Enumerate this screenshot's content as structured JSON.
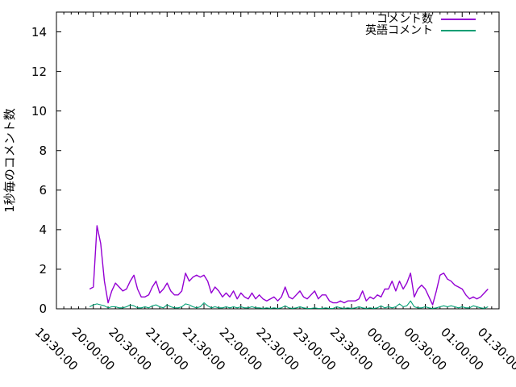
{
  "figure": {
    "background_color": "#ffffff",
    "axis_color": "#000000",
    "text_color": "#000000"
  },
  "chart_data": {
    "type": "line",
    "title": "",
    "xlabel": "",
    "ylabel": "1秒毎のコメント数",
    "ylim": [
      0,
      15
    ],
    "y_ticks": [
      0,
      2,
      4,
      6,
      8,
      10,
      12,
      14
    ],
    "x_ticks": [
      "19:30:00",
      "20:00:00",
      "20:30:00",
      "21:00:00",
      "21:30:00",
      "22:00:00",
      "22:30:00",
      "23:00:00",
      "23:30:00",
      "00:00:00",
      "00:30:00",
      "01:00:00",
      "01:30:00"
    ],
    "x_minor_tick_minutes": 6,
    "grid": false,
    "legend_position": "top-right-inside",
    "x": [
      "19:57",
      "20:00",
      "20:03",
      "20:06",
      "20:09",
      "20:12",
      "20:15",
      "20:18",
      "20:21",
      "20:24",
      "20:27",
      "20:30",
      "20:33",
      "20:36",
      "20:39",
      "20:42",
      "20:45",
      "20:48",
      "20:51",
      "20:54",
      "20:57",
      "21:00",
      "21:03",
      "21:06",
      "21:09",
      "21:12",
      "21:15",
      "21:18",
      "21:21",
      "21:24",
      "21:27",
      "21:30",
      "21:33",
      "21:36",
      "21:39",
      "21:42",
      "21:45",
      "21:48",
      "21:51",
      "21:54",
      "21:57",
      "22:00",
      "22:03",
      "22:06",
      "22:09",
      "22:12",
      "22:15",
      "22:18",
      "22:21",
      "22:24",
      "22:27",
      "22:30",
      "22:33",
      "22:36",
      "22:39",
      "22:42",
      "22:45",
      "22:48",
      "22:51",
      "22:54",
      "22:57",
      "23:00",
      "23:03",
      "23:06",
      "23:09",
      "23:12",
      "23:15",
      "23:18",
      "23:21",
      "23:24",
      "23:27",
      "23:30",
      "23:33",
      "23:36",
      "23:39",
      "23:42",
      "23:45",
      "23:48",
      "23:51",
      "23:54",
      "23:57",
      "00:00",
      "00:03",
      "00:06",
      "00:09",
      "00:12",
      "00:15",
      "00:18",
      "00:21",
      "00:24",
      "00:27",
      "00:30",
      "00:33",
      "00:36",
      "00:39",
      "00:42",
      "00:45",
      "00:48",
      "00:51",
      "00:54",
      "00:57",
      "01:00",
      "01:03",
      "01:06",
      "01:09",
      "01:12",
      "01:15",
      "01:18",
      "01:21"
    ],
    "series": [
      {
        "name": "コメント数",
        "color": "#9400d3",
        "values": [
          1.0,
          1.1,
          4.2,
          3.3,
          1.4,
          0.3,
          0.9,
          1.3,
          1.1,
          0.9,
          1.0,
          1.4,
          1.7,
          1.0,
          0.6,
          0.6,
          0.7,
          1.1,
          1.4,
          0.8,
          1.0,
          1.3,
          0.9,
          0.7,
          0.7,
          0.9,
          1.8,
          1.4,
          1.6,
          1.7,
          1.6,
          1.7,
          1.4,
          0.8,
          1.1,
          0.9,
          0.6,
          0.8,
          0.6,
          0.9,
          0.5,
          0.8,
          0.6,
          0.5,
          0.8,
          0.5,
          0.7,
          0.5,
          0.4,
          0.5,
          0.6,
          0.4,
          0.6,
          1.1,
          0.6,
          0.5,
          0.7,
          0.9,
          0.6,
          0.5,
          0.7,
          0.9,
          0.5,
          0.7,
          0.7,
          0.4,
          0.3,
          0.3,
          0.4,
          0.3,
          0.4,
          0.4,
          0.4,
          0.5,
          0.9,
          0.4,
          0.6,
          0.5,
          0.7,
          0.6,
          1.0,
          1.0,
          1.4,
          0.9,
          1.4,
          1.0,
          1.3,
          1.8,
          0.6,
          1.0,
          1.2,
          1.0,
          0.6,
          0.2,
          0.9,
          1.7,
          1.8,
          1.5,
          1.4,
          1.2,
          1.1,
          1.0,
          0.7,
          0.5,
          0.6,
          0.5,
          0.6,
          0.8,
          1.0
        ]
      },
      {
        "name": "英語コメント",
        "color": "#009e73",
        "values": [
          0.1,
          0.2,
          0.25,
          0.2,
          0.15,
          0.05,
          0.1,
          0.1,
          0.05,
          0.05,
          0.1,
          0.2,
          0.15,
          0.05,
          0.05,
          0.1,
          0.05,
          0.15,
          0.2,
          0.1,
          0.05,
          0.2,
          0.1,
          0.05,
          0.05,
          0.1,
          0.25,
          0.2,
          0.1,
          0.05,
          0.1,
          0.3,
          0.15,
          0.05,
          0.1,
          0.05,
          0.05,
          0.1,
          0.05,
          0.1,
          0.05,
          0.1,
          0.05,
          0.05,
          0.1,
          0.05,
          0.05,
          0.02,
          0.05,
          0.02,
          0.05,
          0.02,
          0.05,
          0.15,
          0.05,
          0.02,
          0.05,
          0.1,
          0.05,
          0.02,
          0.02,
          0.05,
          0.02,
          0.02,
          0.05,
          0.02,
          0.02,
          0.1,
          0.05,
          0.02,
          0.05,
          0.02,
          0.05,
          0.1,
          0.05,
          0.02,
          0.05,
          0.02,
          0.05,
          0.15,
          0.05,
          0.1,
          0.05,
          0.1,
          0.25,
          0.1,
          0.15,
          0.4,
          0.1,
          0.05,
          0.05,
          0.1,
          0.05,
          0.02,
          0.05,
          0.1,
          0.15,
          0.1,
          0.15,
          0.1,
          0.05,
          0.1,
          0.05,
          0.05,
          0.15,
          0.1,
          0.05,
          0.02,
          0.1
        ]
      }
    ]
  }
}
